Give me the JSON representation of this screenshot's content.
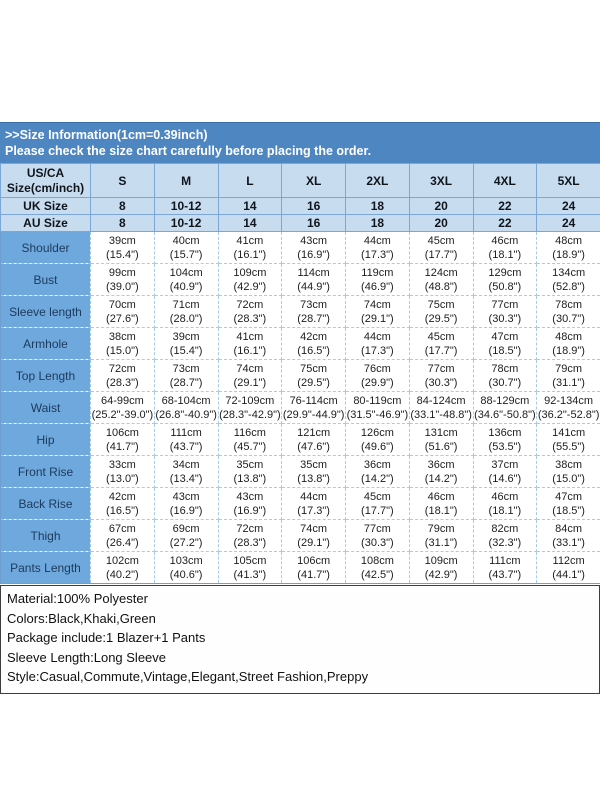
{
  "colors": {
    "band_blue": "#4e86c2",
    "header_cell_blue": "#c8dcf0",
    "label_column_blue": "#6fa8dc",
    "data_border_blue": "#a9cbea",
    "info_border_dark": "#3d3d3d"
  },
  "chart_data": {
    "type": "table",
    "title": ">>Size Information(1cm=0.39inch)",
    "subtitle": "Please check the size chart carefully before placing the order.",
    "corner_line1": "US/CA",
    "corner_line2": "Size(cm/inch)",
    "size_columns": [
      "S",
      "M",
      "L",
      "XL",
      "2XL",
      "3XL",
      "4XL",
      "5XL"
    ],
    "conversion_rows": [
      {
        "label": "UK Size",
        "values": [
          "8",
          "10-12",
          "14",
          "16",
          "18",
          "20",
          "22",
          "24"
        ]
      },
      {
        "label": "AU Size",
        "values": [
          "8",
          "10-12",
          "14",
          "16",
          "18",
          "20",
          "22",
          "24"
        ]
      }
    ],
    "measurement_rows": [
      {
        "label": "Shoulder",
        "cm": [
          "39cm",
          "40cm",
          "41cm",
          "43cm",
          "44cm",
          "45cm",
          "46cm",
          "48cm"
        ],
        "inch": [
          "(15.4\")",
          "(15.7\")",
          "(16.1\")",
          "(16.9\")",
          "(17.3\")",
          "(17.7\")",
          "(18.1\")",
          "(18.9\")"
        ]
      },
      {
        "label": "Bust",
        "cm": [
          "99cm",
          "104cm",
          "109cm",
          "114cm",
          "119cm",
          "124cm",
          "129cm",
          "134cm"
        ],
        "inch": [
          "(39.0\")",
          "(40.9\")",
          "(42.9\")",
          "(44.9\")",
          "(46.9\")",
          "(48.8\")",
          "(50.8\")",
          "(52.8\")"
        ]
      },
      {
        "label": "Sleeve length",
        "cm": [
          "70cm",
          "71cm",
          "72cm",
          "73cm",
          "74cm",
          "75cm",
          "77cm",
          "78cm"
        ],
        "inch": [
          "(27.6\")",
          "(28.0\")",
          "(28.3\")",
          "(28.7\")",
          "(29.1\")",
          "(29.5\")",
          "(30.3\")",
          "(30.7\")"
        ]
      },
      {
        "label": "Armhole",
        "cm": [
          "38cm",
          "39cm",
          "41cm",
          "42cm",
          "44cm",
          "45cm",
          "47cm",
          "48cm"
        ],
        "inch": [
          "(15.0\")",
          "(15.4\")",
          "(16.1\")",
          "(16.5\")",
          "(17.3\")",
          "(17.7\")",
          "(18.5\")",
          "(18.9\")"
        ]
      },
      {
        "label": "Top Length",
        "cm": [
          "72cm",
          "73cm",
          "74cm",
          "75cm",
          "76cm",
          "77cm",
          "78cm",
          "79cm"
        ],
        "inch": [
          "(28.3\")",
          "(28.7\")",
          "(29.1\")",
          "(29.5\")",
          "(29.9\")",
          "(30.3\")",
          "(30.7\")",
          "(31.1\")"
        ]
      },
      {
        "label": "Waist",
        "cm": [
          "64-99cm",
          "68-104cm",
          "72-109cm",
          "76-114cm",
          "80-119cm",
          "84-124cm",
          "88-129cm",
          "92-134cm"
        ],
        "inch": [
          "(25.2\"-39.0\")",
          "(26.8\"-40.9\")",
          "(28.3\"-42.9\")",
          "(29.9\"-44.9\")",
          "(31.5\"-46.9\")",
          "(33.1\"-48.8\")",
          "(34.6\"-50.8\")",
          "(36.2\"-52.8\")"
        ]
      },
      {
        "label": "Hip",
        "cm": [
          "106cm",
          "111cm",
          "116cm",
          "121cm",
          "126cm",
          "131cm",
          "136cm",
          "141cm"
        ],
        "inch": [
          "(41.7\")",
          "(43.7\")",
          "(45.7\")",
          "(47.6\")",
          "(49.6\")",
          "(51.6\")",
          "(53.5\")",
          "(55.5\")"
        ]
      },
      {
        "label": "Front Rise",
        "cm": [
          "33cm",
          "34cm",
          "35cm",
          "35cm",
          "36cm",
          "36cm",
          "37cm",
          "38cm"
        ],
        "inch": [
          "(13.0\")",
          "(13.4\")",
          "(13.8\")",
          "(13.8\")",
          "(14.2\")",
          "(14.2\")",
          "(14.6\")",
          "(15.0\")"
        ]
      },
      {
        "label": "Back Rise",
        "cm": [
          "42cm",
          "43cm",
          "43cm",
          "44cm",
          "45cm",
          "46cm",
          "46cm",
          "47cm"
        ],
        "inch": [
          "(16.5\")",
          "(16.9\")",
          "(16.9\")",
          "(17.3\")",
          "(17.7\")",
          "(18.1\")",
          "(18.1\")",
          "(18.5\")"
        ]
      },
      {
        "label": "Thigh",
        "cm": [
          "67cm",
          "69cm",
          "72cm",
          "74cm",
          "77cm",
          "79cm",
          "82cm",
          "84cm"
        ],
        "inch": [
          "(26.4\")",
          "(27.2\")",
          "(28.3\")",
          "(29.1\")",
          "(30.3\")",
          "(31.1\")",
          "(32.3\")",
          "(33.1\")"
        ]
      },
      {
        "label": "Pants Length",
        "cm": [
          "102cm",
          "103cm",
          "105cm",
          "106cm",
          "108cm",
          "109cm",
          "111cm",
          "112cm"
        ],
        "inch": [
          "(40.2\")",
          "(40.6\")",
          "(41.3\")",
          "(41.7\")",
          "(42.5\")",
          "(42.9\")",
          "(43.7\")",
          "(44.1\")"
        ]
      }
    ]
  },
  "product_info": {
    "lines": [
      "Material:100% Polyester",
      "Colors:Black,Khaki,Green",
      "Package include:1 Blazer+1 Pants",
      "Sleeve Length:Long Sleeve",
      "Style:Casual,Commute,Vintage,Elegant,Street Fashion,Preppy"
    ]
  }
}
